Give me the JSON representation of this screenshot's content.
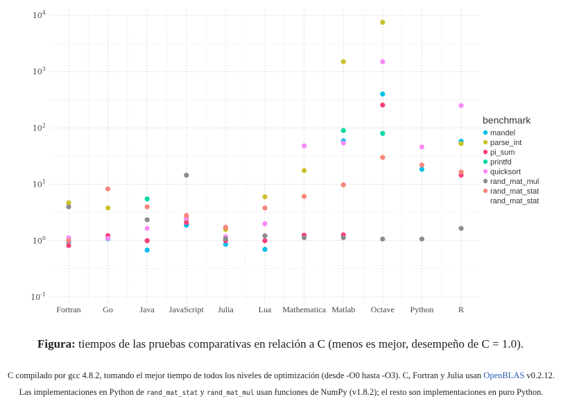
{
  "chart_data": {
    "type": "scatter",
    "yscale": "log",
    "ylim": [
      0.1,
      10000
    ],
    "y_ticks": [
      {
        "base": "10",
        "exp": "-1",
        "value": 0.1
      },
      {
        "base": "10",
        "exp": "0",
        "value": 1
      },
      {
        "base": "10",
        "exp": "1",
        "value": 10
      },
      {
        "base": "10",
        "exp": "2",
        "value": 100
      },
      {
        "base": "10",
        "exp": "3",
        "value": 1000
      },
      {
        "base": "10",
        "exp": "4",
        "value": 10000
      }
    ],
    "categories": [
      "Fortran",
      "Go",
      "Java",
      "JavaScript",
      "Julia",
      "Lua",
      "Mathematica",
      "Matlab",
      "Octave",
      "Python",
      "R"
    ],
    "legend_title": "benchmark",
    "series": [
      {
        "name": "mandel",
        "color": "#00BFEA",
        "values": [
          0.95,
          1.08,
          0.68,
          1.87,
          0.86,
          0.7,
          null,
          59,
          400,
          18.5,
          58
        ]
      },
      {
        "name": "parse_int",
        "color": "#C9C12A",
        "values": [
          4.7,
          3.8,
          1.0,
          2.4,
          1.58,
          6.0,
          17.5,
          1500,
          7500,
          null,
          53
        ]
      },
      {
        "name": "pi_sum",
        "color": "#F8407A",
        "values": [
          0.82,
          1.23,
          1.0,
          2.1,
          1.0,
          1.0,
          1.25,
          1.27,
          255,
          null,
          14.5
        ]
      },
      {
        "name": "printfd",
        "color": "#00D9A3",
        "values": [
          null,
          null,
          5.5,
          null,
          null,
          null,
          null,
          90,
          80,
          null,
          null
        ]
      },
      {
        "name": "quicksort",
        "color": "#F78BF5",
        "values": [
          1.12,
          1.1,
          1.65,
          2.5,
          1.18,
          2.0,
          48,
          54,
          1500,
          46,
          250
        ]
      },
      {
        "name": "rand_mat_mul",
        "color": "#8C8C8C",
        "values": [
          4.0,
          null,
          2.35,
          14.5,
          1.08,
          1.22,
          1.13,
          1.13,
          1.07,
          1.07,
          1.65
        ]
      },
      {
        "name": "rand_mat_stat",
        "color": "#F7857A",
        "values": [
          1.0,
          8.3,
          4.0,
          2.8,
          1.73,
          3.8,
          6.1,
          9.8,
          30,
          22,
          16.5
        ]
      }
    ],
    "legend_extra_label": "rand_mat_stat"
  },
  "caption": {
    "bold": "Figura:",
    "text": " tiempos de las pruebas comparativas en relación a C (menos es mejor, desempeño de C = 1.0)."
  },
  "note": {
    "part1": "C compilado por gcc 4.8.2, tomando el mejor tiempo de todos los niveles de optimización (desde -O0 hasta -O3). C, Fortran y Julia usan ",
    "link": "OpenBLAS",
    "part2": " v0.2.12. Las implementaciones en Python de ",
    "code1": "rand_mat_stat",
    "part3": " y ",
    "code2": "rand_mat_mul",
    "part4": " usan funciones de NumPy (v1.8.2); el resto son implementaciones en puro Python."
  }
}
